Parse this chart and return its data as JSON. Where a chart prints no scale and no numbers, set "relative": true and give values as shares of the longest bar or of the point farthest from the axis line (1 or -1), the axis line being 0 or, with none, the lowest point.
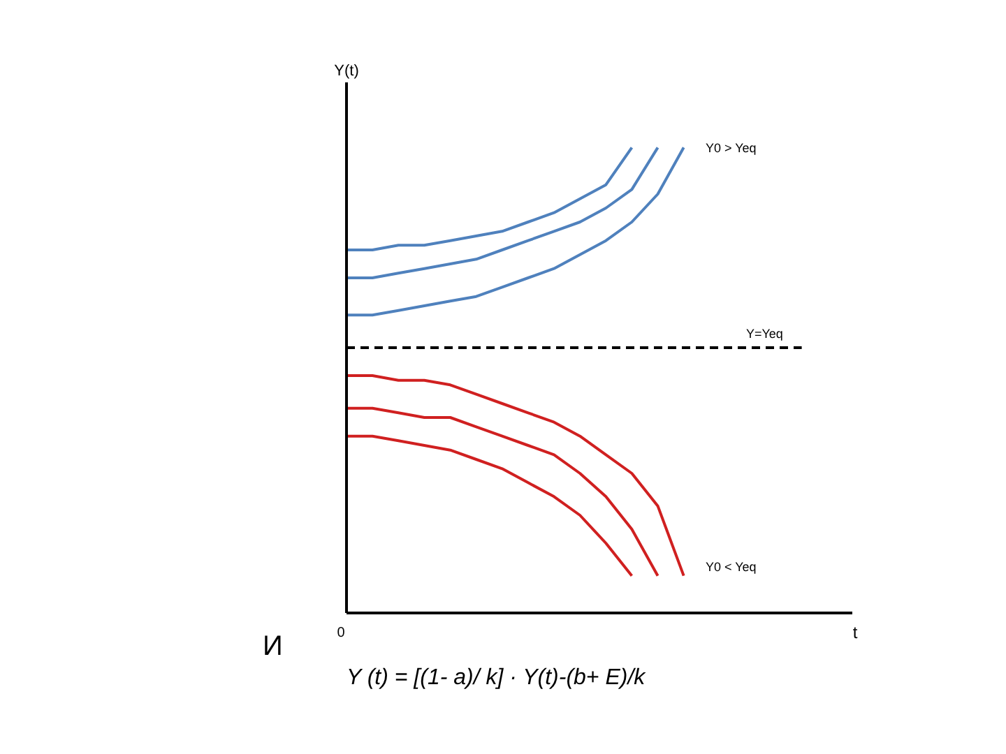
{
  "chart_data": {
    "type": "line",
    "relative": true,
    "ylabel": "Y(t)",
    "line_style": "solid",
    "categories": [
      null,
      null,
      null,
      null,
      null,
      null,
      null,
      null,
      null,
      null,
      null,
      null,
      null,
      null
    ],
    "series": [
      {
        "color": "#4f81bd",
        "values": [
          0.78,
          0.78,
          0.79,
          0.79,
          0.8,
          0.81,
          0.82,
          0.84,
          0.86,
          0.89,
          0.92,
          1.0,
          null,
          null
        ]
      },
      {
        "color": "#4f81bd",
        "values": [
          0.72,
          0.72,
          0.73,
          0.74,
          0.75,
          0.76,
          0.78,
          0.8,
          0.82,
          0.84,
          0.87,
          0.91,
          1.0,
          null
        ]
      },
      {
        "color": "#4f81bd",
        "values": [
          0.64,
          0.64,
          0.65,
          0.66,
          0.67,
          0.68,
          0.7,
          0.72,
          0.74,
          0.77,
          0.8,
          0.84,
          0.9,
          1.0
        ]
      },
      {
        "color": "#d02020",
        "values": [
          0.51,
          0.51,
          0.5,
          0.5,
          0.49,
          0.47,
          0.45,
          0.43,
          0.41,
          0.38,
          0.34,
          0.3,
          0.23,
          0.08
        ]
      },
      {
        "color": "#d02020",
        "values": [
          0.44,
          0.44,
          0.43,
          0.42,
          0.42,
          0.4,
          0.38,
          0.36,
          0.34,
          0.3,
          0.25,
          0.18,
          0.08,
          null
        ]
      },
      {
        "color": "#d02020",
        "values": [
          0.38,
          0.38,
          0.37,
          0.36,
          0.35,
          0.33,
          0.31,
          0.28,
          0.25,
          0.21,
          0.15,
          0.08,
          null,
          null
        ]
      }
    ],
    "ref_lines": [
      {
        "axis": "y",
        "value": 0.57,
        "label": "Y=Yeq",
        "color": "#000000",
        "line_style": "dashed"
      }
    ],
    "annotations": [
      "Y0 > Yeq",
      "Y0 < Yeq",
      "0",
      "И",
      "Y (t) = [(1- a)/ k] · Y(t)-(b+ E)/k",
      "t"
    ]
  }
}
